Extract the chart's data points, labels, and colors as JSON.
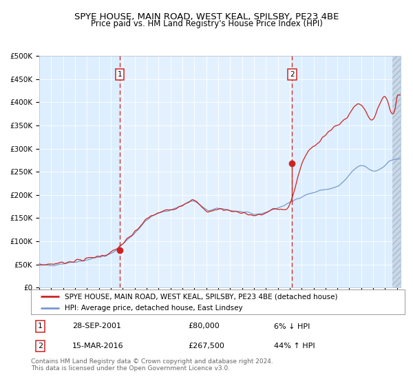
{
  "title": "SPYE HOUSE, MAIN ROAD, WEST KEAL, SPILSBY, PE23 4BE",
  "subtitle": "Price paid vs. HM Land Registry's House Price Index (HPI)",
  "legend_label_red": "SPYE HOUSE, MAIN ROAD, WEST KEAL, SPILSBY, PE23 4BE (detached house)",
  "legend_label_blue": "HPI: Average price, detached house, East Lindsey",
  "transaction1_label": "28-SEP-2001",
  "transaction1_price": "£80,000",
  "transaction1_hpi": "6% ↓ HPI",
  "transaction1_value": 80000,
  "transaction1_year": 2001.75,
  "transaction2_label": "15-MAR-2016",
  "transaction2_price": "£267,500",
  "transaction2_hpi": "44% ↑ HPI",
  "transaction2_value": 267500,
  "transaction2_year": 2016.2,
  "red_color": "#cc2222",
  "blue_color": "#7799cc",
  "bg_color": "#ddeeff",
  "ylabel_ticks": [
    "£0",
    "£50K",
    "£100K",
    "£150K",
    "£200K",
    "£250K",
    "£300K",
    "£350K",
    "£400K",
    "£450K",
    "£500K"
  ],
  "ytick_values": [
    0,
    50000,
    100000,
    150000,
    200000,
    250000,
    300000,
    350000,
    400000,
    450000,
    500000
  ],
  "xmin": 1995.0,
  "xmax": 2025.3,
  "ymin": 0,
  "ymax": 500000,
  "footer": "Contains HM Land Registry data © Crown copyright and database right 2024.\nThis data is licensed under the Open Government Licence v3.0.",
  "title_fontsize": 9.5,
  "subtitle_fontsize": 8.5,
  "tick_fontsize": 7.5,
  "legend_fontsize": 7.5,
  "footer_fontsize": 6.5
}
